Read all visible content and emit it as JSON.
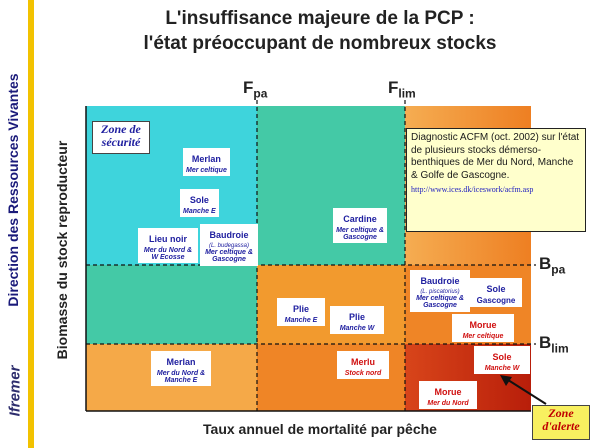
{
  "sidebar": {
    "vertical_text": "Direction des Ressources Vivantes",
    "logo_text": "Ifremer"
  },
  "title": {
    "line1": "L'insuffisance majeure de la PCP :",
    "line2": "l'état préoccupant de nombreux stocks"
  },
  "axes": {
    "xlabel": "Taux annuel de mortalité par pêche",
    "ylabel": "Biomasse du stock reproducteur"
  },
  "refs": {
    "fpa_main": "F",
    "fpa_sub": "pa",
    "flim_main": "F",
    "flim_sub": "lim",
    "bpa_main": "B",
    "bpa_sub": "pa",
    "blim_main": "B",
    "blim_sub": "lim"
  },
  "zones": {
    "securite_line1": "Zone de",
    "securite_line2": "sécurité",
    "alerte_line1": "Zone",
    "alerte_line2": "d'alerte"
  },
  "diagnostic": {
    "text": "Diagnostic ACFM (oct. 2002) sur l'état de plusieurs stocks démerso-benthiques de Mer du Nord, Manche & Golfe de Gascogne.",
    "url": "http://www.ices.dk/iceswork/acfm.asp"
  },
  "stocks": {
    "merlan_celtique": {
      "name": "Merlan",
      "area": "Mer celtique"
    },
    "sole_mancheE": {
      "name": "Sole",
      "area": "Manche E"
    },
    "lieu_noir": {
      "name": "Lieu noir",
      "area": "Mer du Nord & W Ecosse"
    },
    "baudroie_budegassa": {
      "name": "Baudroie",
      "latin": "(L. budegassa)",
      "area": "Mer celtique & Gascogne"
    },
    "cardine": {
      "name": "Cardine",
      "area": "Mer celtique & Gascogne"
    },
    "baudroie_piscatorius": {
      "name": "Baudroie",
      "latin": "(L. piscatorius)",
      "area": "Mer celtique & Gascogne"
    },
    "sole_gascogne": {
      "name": "Sole",
      "area": "Gascogne"
    },
    "plie_mancheE": {
      "name": "Plie",
      "area": "Manche E"
    },
    "plie_mancheW": {
      "name": "Plie",
      "area": "Manche W"
    },
    "morue_celtique": {
      "name": "Morue",
      "area": "Mer celtique"
    },
    "merlan_nord": {
      "name": "Merlan",
      "area": "Mer du Nord & Manche E"
    },
    "merlu": {
      "name": "Merlu",
      "area": "Stock nord"
    },
    "sole_mancheW": {
      "name": "Sole",
      "area": "Manche W"
    },
    "morue_nord": {
      "name": "Morue",
      "area": "Mer du Nord"
    }
  },
  "colors": {
    "cyan": "#3ed4dc",
    "green": "#44c9a6",
    "orange": "#f29a2e",
    "orange_light": "#f5a948",
    "orange_dark": "#ef8526",
    "red": "#d33212",
    "accent_yellow": "#f2c200"
  }
}
